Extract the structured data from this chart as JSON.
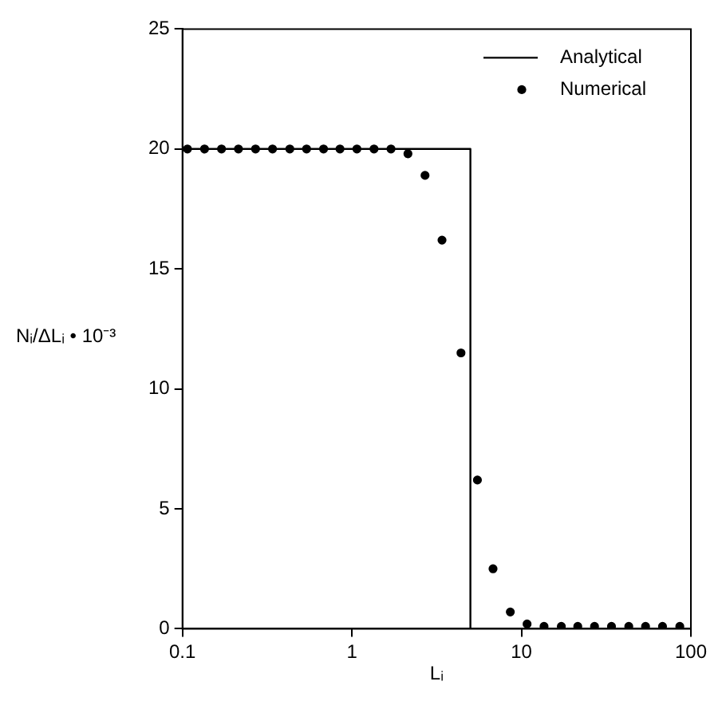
{
  "chart_data": {
    "type": "line",
    "xlabel": "Lᵢ",
    "ylabel": "Nᵢ/ΔLᵢ • 10⁻³",
    "log": "x",
    "xlim": [
      0.1,
      100
    ],
    "xticks": [
      0.1,
      1,
      10,
      100
    ],
    "ylim": [
      0,
      25
    ],
    "yticks": [
      0,
      5,
      10,
      15,
      20,
      25
    ],
    "grid": false,
    "legend": "top right",
    "series": [
      {
        "name": "Analytical",
        "type": "line",
        "color": "#000000",
        "marker": "none",
        "x": [
          0.1,
          5,
          5,
          100
        ],
        "values": [
          20,
          20,
          0,
          0
        ]
      },
      {
        "name": "Numerical",
        "type": "scatter",
        "color": "#000000",
        "marker": "circle",
        "x": [
          0.107,
          0.135,
          0.17,
          0.214,
          0.27,
          0.34,
          0.43,
          0.54,
          0.68,
          0.85,
          1.07,
          1.35,
          1.7,
          2.14,
          2.7,
          3.4,
          4.4,
          5.5,
          6.8,
          8.6,
          10.8,
          13.6,
          17.2,
          21.5,
          27,
          34,
          43,
          54,
          68,
          86
        ],
        "values": [
          20,
          20,
          20,
          20,
          20,
          20,
          20,
          20,
          20,
          20,
          20,
          20,
          20,
          19.8,
          18.9,
          16.2,
          11.5,
          6.2,
          2.5,
          0.7,
          0.2,
          0.1,
          0.1,
          0.1,
          0.1,
          0.1,
          0.1,
          0.1,
          0.1,
          0.1
        ]
      }
    ]
  }
}
